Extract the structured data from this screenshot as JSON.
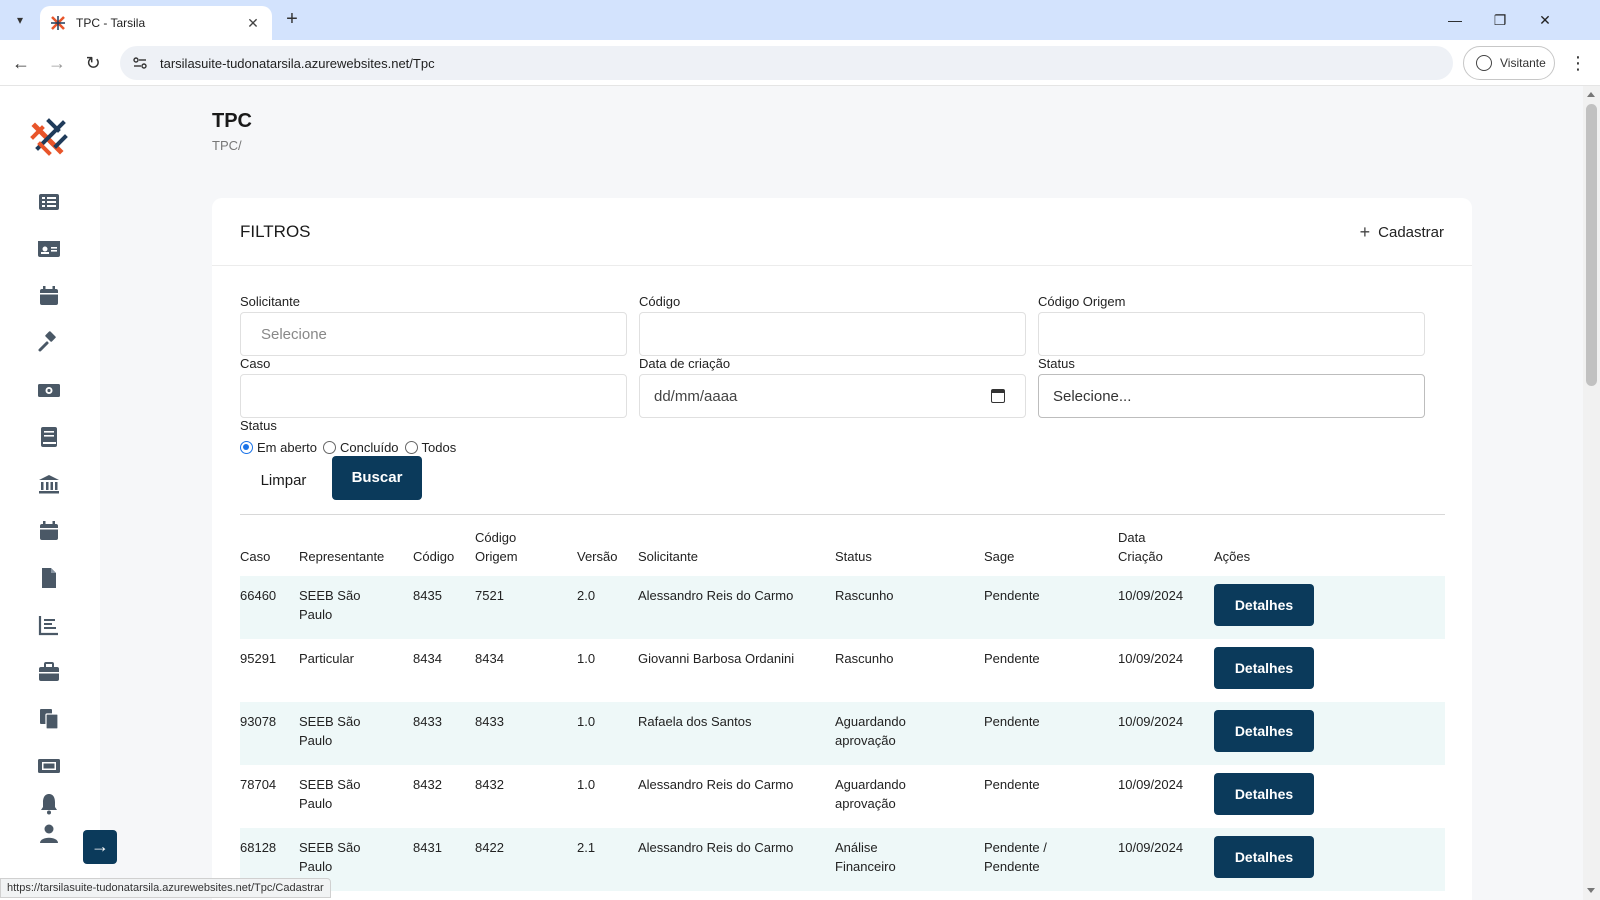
{
  "browser": {
    "tab_title": "TPC - Tarsila",
    "url": "tarsilasuite-tudonatarsila.azurewebsites.net/Tpc",
    "profile_label": "Visitante",
    "status_url": "https://tarsilasuite-tudonatarsila.azurewebsites.net/Tpc/Cadastrar"
  },
  "sidebar": {
    "icons": [
      "list-icon",
      "id-card-icon",
      "calendar-icon",
      "gavel-icon",
      "money-icon",
      "book-icon",
      "bank-icon",
      "calendar-icon",
      "document-icon",
      "chart-icon",
      "briefcase-icon",
      "copy-icon",
      "ticket-icon",
      "bell-icon",
      "user-icon"
    ],
    "collapse_arrow": "→"
  },
  "page": {
    "title": "TPC",
    "breadcrumb": "TPC/"
  },
  "filters": {
    "title": "FILTROS",
    "add_label": "Cadastrar",
    "solicitante_label": "Solicitante",
    "solicitante_placeholder": "Selecione",
    "codigo_label": "Código",
    "codigo_origem_label": "Código Origem",
    "caso_label": "Caso",
    "data_label": "Data de criação",
    "data_placeholder": "dd/mm/aaaa",
    "status_select_label": "Status",
    "status_select_placeholder": "Selecione...",
    "status_radio_label": "Status",
    "radio_options": [
      "Em aberto",
      "Concluído",
      "Todos"
    ],
    "radio_selected": "Em aberto",
    "clear_label": "Limpar",
    "search_label": "Buscar"
  },
  "table": {
    "headers": [
      "Caso",
      "Representante",
      "Código",
      "Código Origem",
      "Versão",
      "Solicitante",
      "Status",
      "Sage",
      "Data Criação",
      "Ações"
    ],
    "action_label": "Detalhes",
    "rows": [
      {
        "caso": "66460",
        "representante": "SEEB São Paulo",
        "codigo": "8435",
        "codigo_origem": "7521",
        "versao": "2.0",
        "solicitante": "Alessandro Reis do Carmo",
        "status": "Rascunho",
        "sage": "Pendente",
        "data": "10/09/2024"
      },
      {
        "caso": "95291",
        "representante": "Particular",
        "codigo": "8434",
        "codigo_origem": "8434",
        "versao": "1.0",
        "solicitante": "Giovanni Barbosa Ordanini",
        "status": "Rascunho",
        "sage": "Pendente",
        "data": "10/09/2024"
      },
      {
        "caso": "93078",
        "representante": "SEEB São Paulo",
        "codigo": "8433",
        "codigo_origem": "8433",
        "versao": "1.0",
        "solicitante": "Rafaela dos Santos",
        "status": "Aguardando aprovação",
        "sage": "Pendente",
        "data": "10/09/2024"
      },
      {
        "caso": "78704",
        "representante": "SEEB São Paulo",
        "codigo": "8432",
        "codigo_origem": "8432",
        "versao": "1.0",
        "solicitante": "Alessandro Reis do Carmo",
        "status": "Aguardando aprovação",
        "sage": "Pendente",
        "data": "10/09/2024"
      },
      {
        "caso": "68128",
        "representante": "SEEB São Paulo",
        "codigo": "8431",
        "codigo_origem": "8422",
        "versao": "2.1",
        "solicitante": "Alessandro Reis do Carmo",
        "status": "Análise Financeiro",
        "sage": "Pendente / Pendente",
        "data": "10/09/2024"
      }
    ]
  },
  "colors": {
    "primary": "#0b3a5b",
    "row_alt": "#eef8f8",
    "logo_orange": "#e8552a",
    "logo_navy": "#1f3b5a"
  }
}
